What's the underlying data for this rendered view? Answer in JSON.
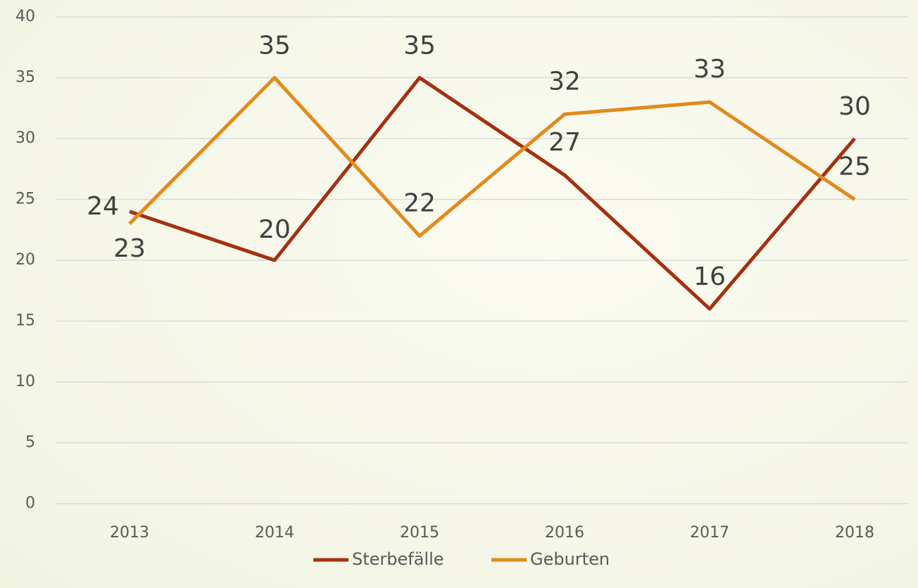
{
  "chart_data": {
    "type": "line",
    "categories": [
      "2013",
      "2014",
      "2015",
      "2016",
      "2017",
      "2018"
    ],
    "series": [
      {
        "name": "Sterbefälle",
        "color": "#a53010",
        "values": [
          24,
          20,
          35,
          27,
          16,
          30
        ]
      },
      {
        "name": "Geburten",
        "color": "#e38a1c",
        "values": [
          23,
          35,
          22,
          32,
          33,
          25
        ]
      }
    ],
    "ylim": [
      0,
      40
    ],
    "yticks": [
      0,
      5,
      10,
      15,
      20,
      25,
      30,
      35,
      40
    ],
    "grid": true,
    "legend": "bottom"
  }
}
